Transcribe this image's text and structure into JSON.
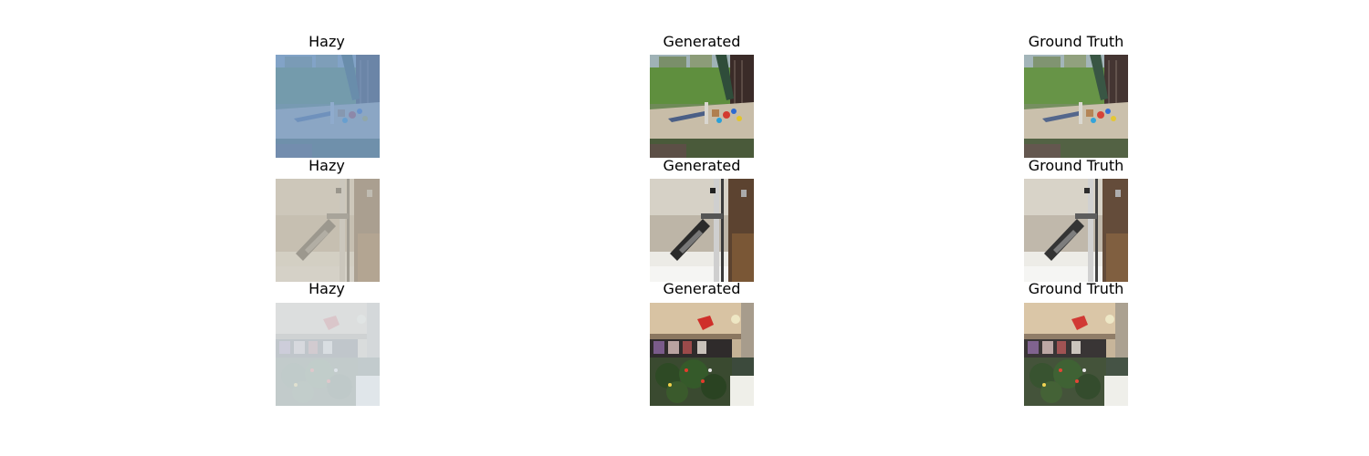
{
  "rows": [
    {
      "hazy": {
        "title": "Hazy"
      },
      "generated": {
        "title": "Generated"
      },
      "ground_truth": {
        "title": "Ground Truth"
      }
    },
    {
      "hazy": {
        "title": "Hazy"
      },
      "generated": {
        "title": "Generated"
      },
      "ground_truth": {
        "title": "Ground Truth"
      }
    },
    {
      "hazy": {
        "title": "Hazy"
      },
      "generated": {
        "title": "Generated"
      },
      "ground_truth": {
        "title": "Ground Truth"
      }
    }
  ]
}
